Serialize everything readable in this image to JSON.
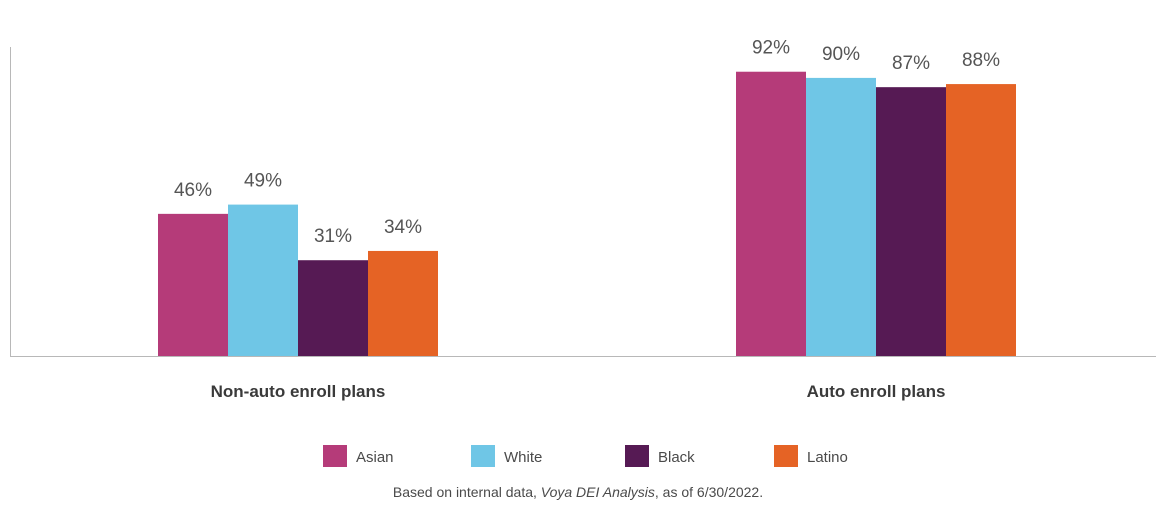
{
  "chart_data": {
    "type": "bar",
    "categories": [
      "Non-auto enroll plans",
      "Auto enroll plans"
    ],
    "series": [
      {
        "name": "Asian",
        "color": "#b53b79",
        "values": [
          46,
          92
        ],
        "labels": [
          "46%",
          "92%"
        ]
      },
      {
        "name": "White",
        "color": "#6fc6e6",
        "values": [
          49,
          90
        ],
        "labels": [
          "49%",
          "90%"
        ]
      },
      {
        "name": "Black",
        "color": "#561a54",
        "values": [
          31,
          87
        ],
        "labels": [
          "31%",
          "87%"
        ]
      },
      {
        "name": "Latino",
        "color": "#e56325",
        "values": [
          34,
          88
        ],
        "labels": [
          "34%",
          "88%"
        ]
      }
    ],
    "ylim": [
      0,
      100
    ],
    "grid": false,
    "legend_position": "bottom-center",
    "axis_color": "#b8b8b8"
  },
  "footnote": {
    "prefix": "Based on internal data, ",
    "source": "Voya DEI Analysis",
    "suffix": ", as of 6/30/2022."
  }
}
